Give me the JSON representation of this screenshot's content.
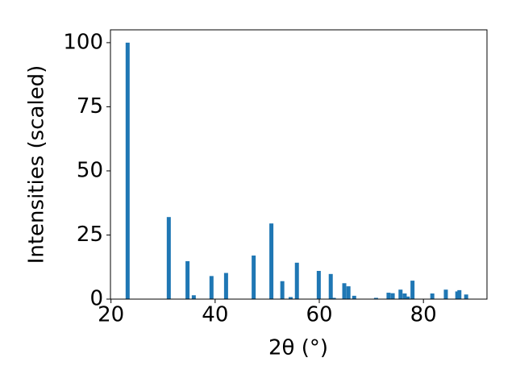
{
  "chart_data": {
    "type": "bar",
    "color": "#1f77b4",
    "x": [
      23.2,
      31.1,
      34.7,
      35.9,
      39.3,
      42.1,
      47.4,
      50.8,
      52.9,
      54.5,
      55.7,
      59.9,
      62.2,
      62.8,
      64.8,
      65.6,
      66.7,
      70.9,
      73.3,
      74.1,
      75.6,
      76.4,
      77.0,
      77.9,
      81.7,
      84.3,
      86.5,
      86.9,
      88.2
    ],
    "values": [
      100,
      32,
      14.8,
      1.5,
      9,
      10.2,
      17,
      29.5,
      7,
      0.8,
      14.2,
      11,
      9.8,
      0.5,
      6.2,
      5,
      1.3,
      0.5,
      2.5,
      2.3,
      3.7,
      2.2,
      1,
      7.2,
      2.2,
      3.7,
      3,
      3.5,
      1.8
    ],
    "xlabel": "2θ (°)",
    "ylabel": "Intensities (scaled)",
    "xlim": [
      19.9,
      92.2
    ],
    "ylim": [
      0,
      105
    ],
    "xticks": [
      20,
      40,
      60,
      80
    ],
    "yticks": [
      0,
      25,
      50,
      75,
      100
    ]
  }
}
